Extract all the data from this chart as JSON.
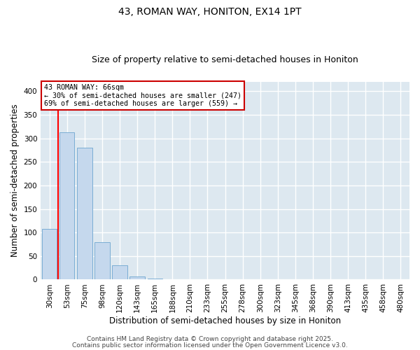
{
  "title": "43, ROMAN WAY, HONITON, EX14 1PT",
  "subtitle": "Size of property relative to semi-detached houses in Honiton",
  "xlabel": "Distribution of semi-detached houses by size in Honiton",
  "ylabel": "Number of semi-detached properties",
  "bar_labels": [
    "30sqm",
    "53sqm",
    "75sqm",
    "98sqm",
    "120sqm",
    "143sqm",
    "165sqm",
    "188sqm",
    "210sqm",
    "233sqm",
    "255sqm",
    "278sqm",
    "300sqm",
    "323sqm",
    "345sqm",
    "368sqm",
    "390sqm",
    "413sqm",
    "435sqm",
    "458sqm",
    "480sqm"
  ],
  "bar_values": [
    108,
    313,
    280,
    80,
    30,
    7,
    2,
    0,
    0,
    0,
    0,
    0,
    0,
    0,
    0,
    0,
    0,
    0,
    0,
    0,
    1
  ],
  "bar_color": "#c5d8ed",
  "bar_edge_color": "#7aadd4",
  "vline_x": 0.5,
  "vline_color": "red",
  "ylim": [
    0,
    420
  ],
  "yticks": [
    0,
    50,
    100,
    150,
    200,
    250,
    300,
    350,
    400
  ],
  "annotation_text": "43 ROMAN WAY: 66sqm\n← 30% of semi-detached houses are smaller (247)\n69% of semi-detached houses are larger (559) →",
  "annotation_box_color": "#ffffff",
  "annotation_box_edge": "#cc0000",
  "footer1": "Contains HM Land Registry data © Crown copyright and database right 2025.",
  "footer2": "Contains public sector information licensed under the Open Government Licence v3.0.",
  "background_color": "#ffffff",
  "plot_background_color": "#dde8f0",
  "grid_color": "#ffffff",
  "title_fontsize": 10,
  "subtitle_fontsize": 9,
  "axis_label_fontsize": 8.5,
  "tick_fontsize": 7.5,
  "footer_fontsize": 6.5
}
